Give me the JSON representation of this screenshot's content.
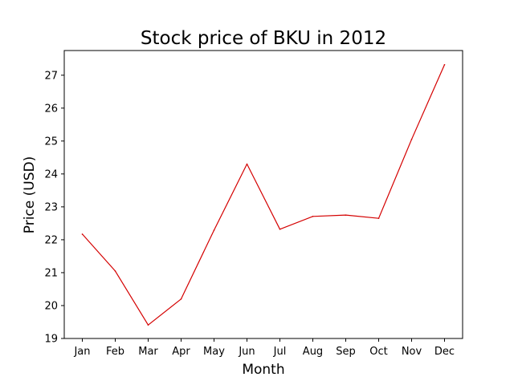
{
  "chart_data": {
    "type": "line",
    "title": "Stock price of BKU in 2012",
    "xlabel": "Month",
    "ylabel": "Price (USD)",
    "categories": [
      "Jan",
      "Feb",
      "Mar",
      "Apr",
      "May",
      "Jun",
      "Jul",
      "Aug",
      "Sep",
      "Oct",
      "Nov",
      "Dec"
    ],
    "series": [
      {
        "values": [
          22.17,
          21.05,
          19.41,
          20.2,
          22.29,
          24.3,
          22.32,
          22.71,
          22.75,
          22.65,
          25.05,
          27.32
        ],
        "color": "#d40000"
      }
    ],
    "ylim": [
      19,
      27.75
    ],
    "yticks": [
      19,
      20,
      21,
      22,
      23,
      24,
      25,
      26,
      27
    ],
    "grid": false,
    "legend": "none"
  }
}
